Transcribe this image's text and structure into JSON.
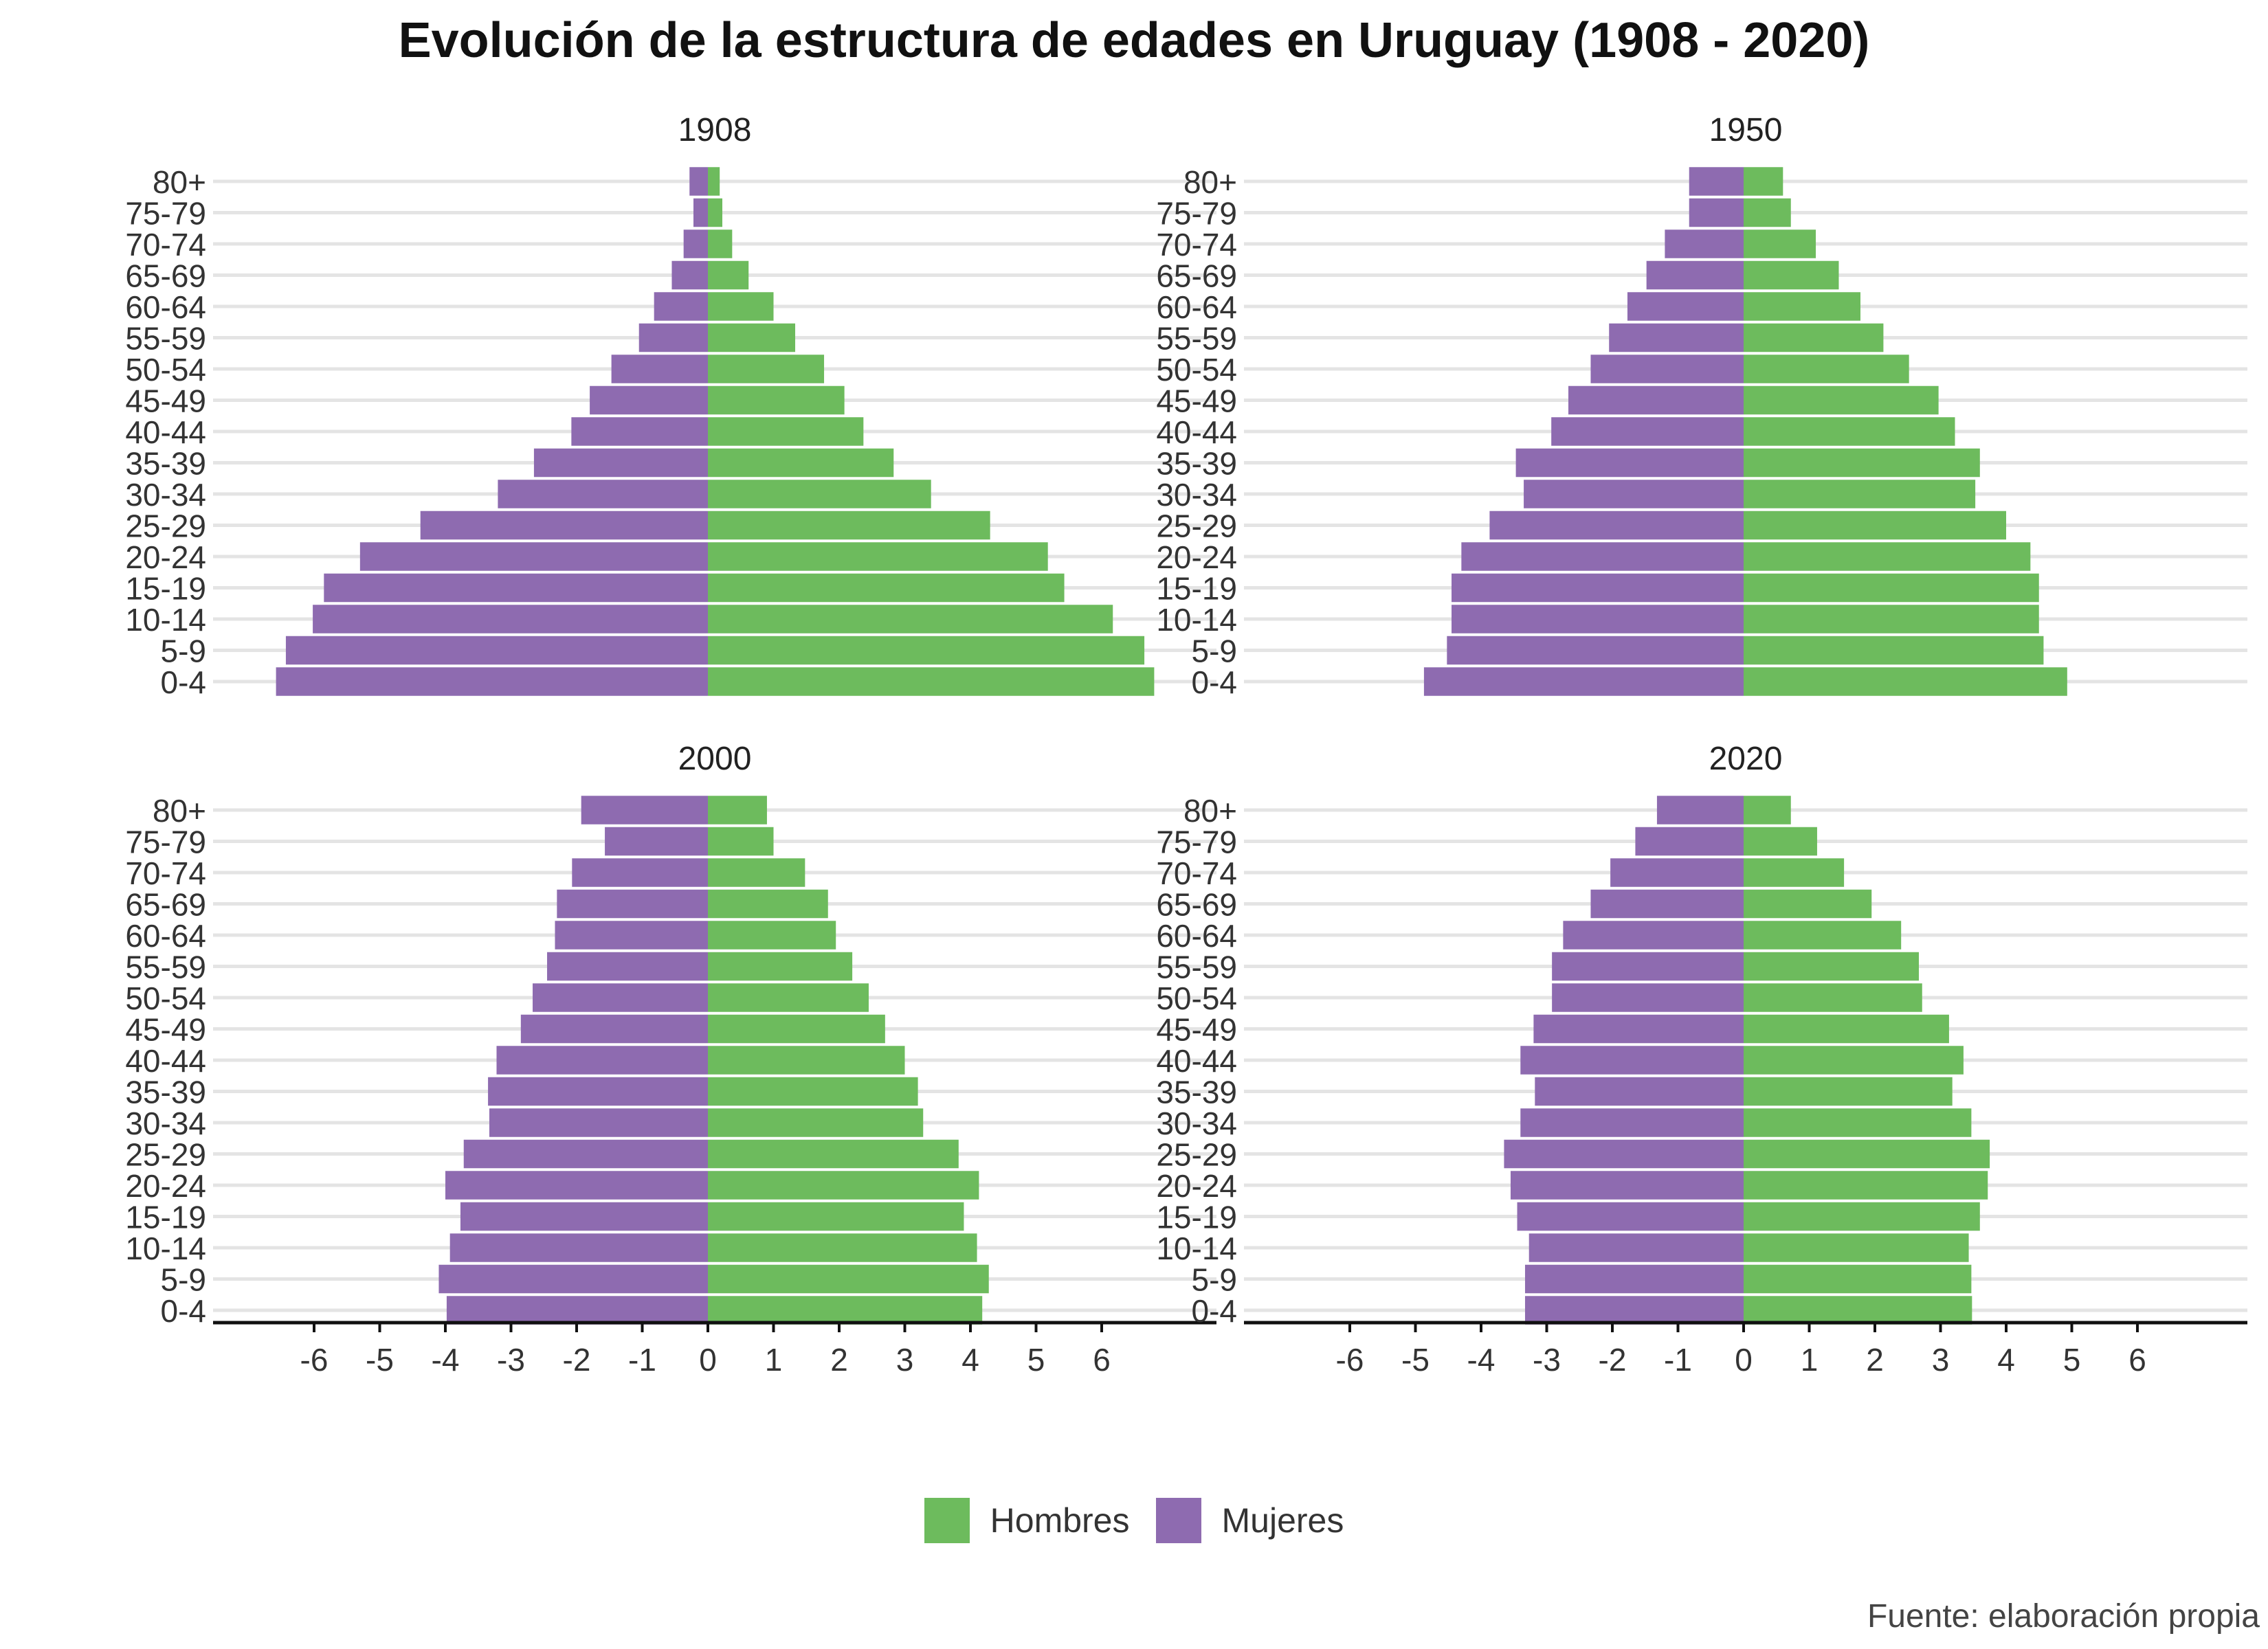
{
  "title": "Evolución de la estructura de edades en Uruguay (1908 - 2020)",
  "caption": "Fuente: elaboración propia",
  "colors": {
    "hombres": "#6dbb5d",
    "mujeres": "#8e6bb0",
    "grid": "#e4e4e4",
    "axis": "#111111"
  },
  "legend": [
    {
      "label": "Hombres",
      "color": "#6dbb5d"
    },
    {
      "label": "Mujeres",
      "color": "#8e6bb0"
    }
  ],
  "chart_data": {
    "type": "bar",
    "orientation": "horizontal",
    "layout": "population-pyramid facets 2x2",
    "categories": [
      "0-4",
      "5-9",
      "10-14",
      "15-19",
      "20-24",
      "25-29",
      "30-34",
      "35-39",
      "40-44",
      "45-49",
      "50-54",
      "55-59",
      "60-64",
      "65-69",
      "70-74",
      "75-79",
      "80+"
    ],
    "xticks": [
      -6,
      -5,
      -4,
      -3,
      -2,
      -1,
      0,
      1,
      2,
      3,
      4,
      5,
      6
    ],
    "xlim": [
      -7.5,
      7.5
    ],
    "legend_position": "bottom",
    "grid": "horizontal",
    "panels": [
      {
        "label": "1908",
        "series": [
          {
            "name": "Hombres",
            "values": [
              6.8,
              6.65,
              6.17,
              5.43,
              5.18,
              4.3,
              3.4,
              2.83,
              2.37,
              2.08,
              1.77,
              1.33,
              1.0,
              0.62,
              0.37,
              0.22,
              0.18
            ]
          },
          {
            "name": "Mujeres",
            "values": [
              -6.58,
              -6.43,
              -6.02,
              -5.85,
              -5.3,
              -4.38,
              -3.2,
              -2.65,
              -2.08,
              -1.8,
              -1.47,
              -1.05,
              -0.82,
              -0.55,
              -0.37,
              -0.22,
              -0.28
            ]
          }
        ]
      },
      {
        "label": "1950",
        "series": [
          {
            "name": "Hombres",
            "values": [
              4.93,
              4.57,
              4.5,
              4.5,
              4.37,
              4.0,
              3.53,
              3.6,
              3.22,
              2.97,
              2.52,
              2.13,
              1.78,
              1.45,
              1.1,
              0.72,
              0.6
            ]
          },
          {
            "name": "Mujeres",
            "values": [
              -4.87,
              -4.52,
              -4.45,
              -4.45,
              -4.3,
              -3.87,
              -3.35,
              -3.47,
              -2.93,
              -2.67,
              -2.33,
              -2.05,
              -1.77,
              -1.48,
              -1.2,
              -0.83,
              -0.83
            ]
          }
        ]
      },
      {
        "label": "2000",
        "series": [
          {
            "name": "Hombres",
            "values": [
              4.18,
              4.28,
              4.1,
              3.9,
              4.13,
              3.82,
              3.28,
              3.2,
              3.0,
              2.7,
              2.45,
              2.2,
              1.95,
              1.83,
              1.48,
              1.0,
              0.9
            ]
          },
          {
            "name": "Mujeres",
            "values": [
              -3.98,
              -4.1,
              -3.93,
              -3.77,
              -4.0,
              -3.72,
              -3.33,
              -3.35,
              -3.22,
              -2.85,
              -2.67,
              -2.45,
              -2.33,
              -2.3,
              -2.07,
              -1.57,
              -1.93
            ]
          }
        ]
      },
      {
        "label": "2020",
        "series": [
          {
            "name": "Hombres",
            "values": [
              3.48,
              3.47,
              3.43,
              3.6,
              3.72,
              3.75,
              3.47,
              3.18,
              3.35,
              3.13,
              2.72,
              2.67,
              2.4,
              1.95,
              1.53,
              1.12,
              0.72
            ]
          },
          {
            "name": "Mujeres",
            "values": [
              -3.33,
              -3.33,
              -3.27,
              -3.45,
              -3.55,
              -3.65,
              -3.4,
              -3.18,
              -3.4,
              -3.2,
              -2.92,
              -2.92,
              -2.75,
              -2.33,
              -2.03,
              -1.65,
              -1.32
            ]
          }
        ]
      }
    ]
  }
}
